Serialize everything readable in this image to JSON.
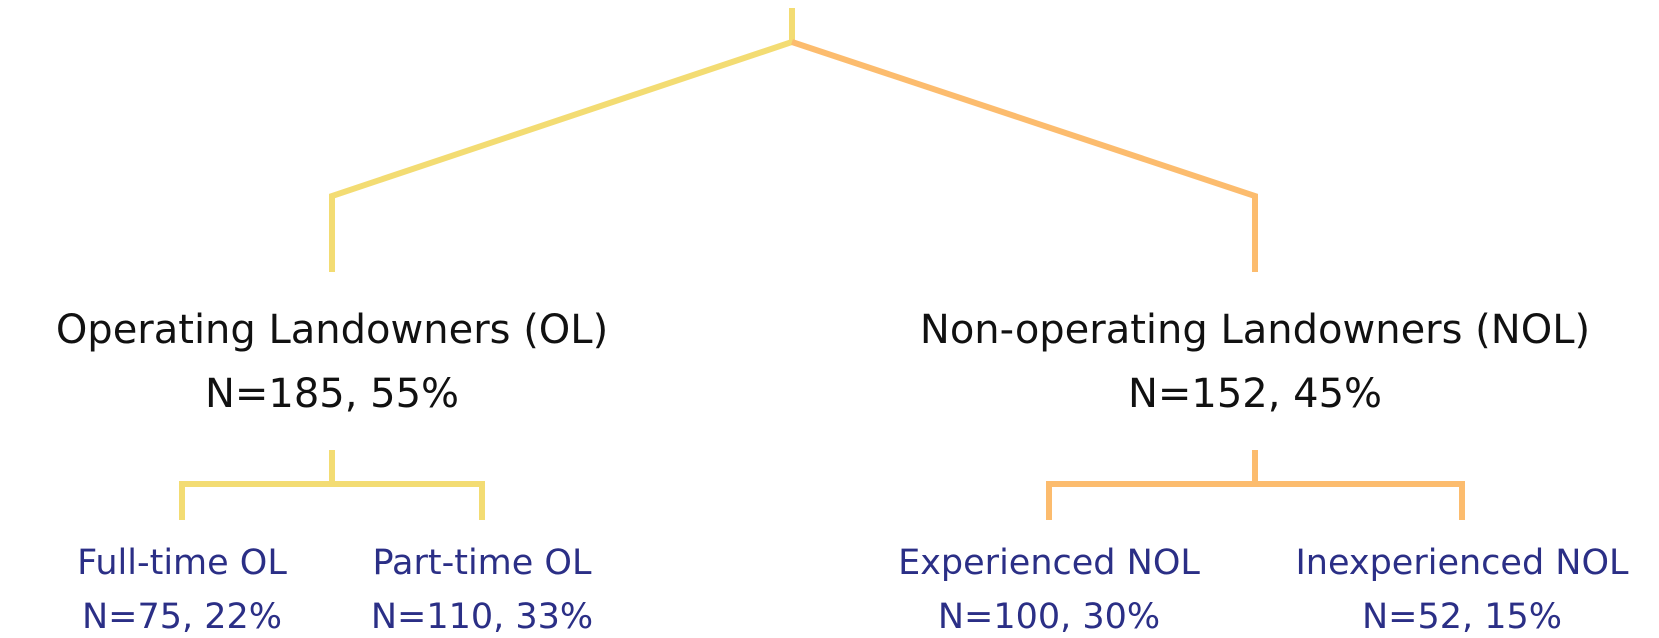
{
  "nodes": [
    {
      "label": "Operating Landowners (OL)",
      "stat": "N=185, 55%"
    },
    {
      "label": "Non-operating Landowners (NOL)",
      "stat": "N=152, 45%"
    },
    {
      "label": "Full-time OL",
      "stat": "N=75, 22%"
    },
    {
      "label": "Part-time OL",
      "stat": "N=110, 33%"
    },
    {
      "label": "Experienced NOL",
      "stat": "N=100, 30%"
    },
    {
      "label": "Inexperienced NOL",
      "stat": "N=52, 15%"
    }
  ]
}
